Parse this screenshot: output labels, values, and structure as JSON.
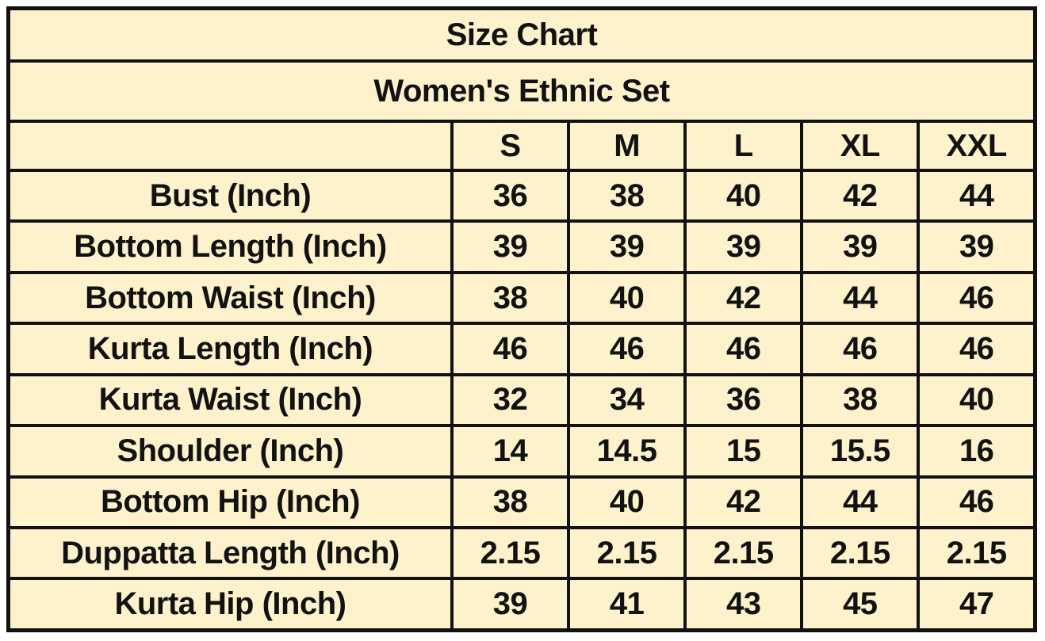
{
  "title": "Size Chart",
  "subtitle": "Women's Ethnic Set",
  "colors": {
    "title_bg": "#bdd7ee",
    "subtitle_bg": "#c5e0b4",
    "cell_bg": "#fdf2cc",
    "border": "#111111",
    "text": "#121212",
    "page_bg": "#ffffff"
  },
  "chart_data": {
    "type": "table",
    "title": "Size Chart",
    "subtitle": "Women's Ethnic Set",
    "columns": [
      "",
      "S",
      "M",
      "L",
      "XL",
      "XXL"
    ],
    "rows": [
      {
        "label": "Bust (Inch)",
        "values": [
          "36",
          "38",
          "40",
          "42",
          "44"
        ]
      },
      {
        "label": "Bottom Length (Inch)",
        "values": [
          "39",
          "39",
          "39",
          "39",
          "39"
        ]
      },
      {
        "label": "Bottom Waist (Inch)",
        "values": [
          "38",
          "40",
          "42",
          "44",
          "46"
        ]
      },
      {
        "label": "Kurta Length (Inch)",
        "values": [
          "46",
          "46",
          "46",
          "46",
          "46"
        ]
      },
      {
        "label": "Kurta Waist (Inch)",
        "values": [
          "32",
          "34",
          "36",
          "38",
          "40"
        ]
      },
      {
        "label": "Shoulder (Inch)",
        "values": [
          "14",
          "14.5",
          "15",
          "15.5",
          "16"
        ]
      },
      {
        "label": "Bottom Hip (Inch)",
        "values": [
          "38",
          "40",
          "42",
          "44",
          "46"
        ]
      },
      {
        "label": "Duppatta Length (Inch)",
        "values": [
          "2.15",
          "2.15",
          "2.15",
          "2.15",
          "2.15"
        ]
      },
      {
        "label": "Kurta Hip (Inch)",
        "values": [
          "39",
          "41",
          "43",
          "45",
          "47"
        ]
      }
    ]
  }
}
